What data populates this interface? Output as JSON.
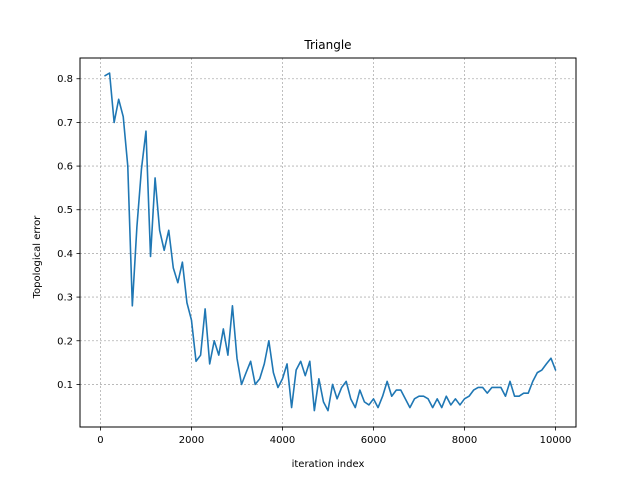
{
  "chart_data": {
    "type": "line",
    "title": "Triangle",
    "xlabel": "iteration index",
    "ylabel": "Topological error",
    "xlim": [
      -450,
      10450
    ],
    "ylim": [
      0.0025,
      0.8475
    ],
    "xticks": [
      0,
      2000,
      4000,
      6000,
      8000,
      10000
    ],
    "yticks": [
      0.1,
      0.2,
      0.3,
      0.4,
      0.5,
      0.6,
      0.7,
      0.8
    ],
    "grid": true,
    "legend": false,
    "line_color": "#1f77b4",
    "series": [
      {
        "x": [
          100,
          200,
          300,
          400,
          500,
          600,
          700,
          800,
          900,
          1000,
          1100,
          1200,
          1300,
          1400,
          1500,
          1600,
          1700,
          1800,
          1900,
          2000,
          2100,
          2200,
          2300,
          2400,
          2500,
          2600,
          2700,
          2800,
          2900,
          3000,
          3100,
          3200,
          3300,
          3400,
          3500,
          3600,
          3700,
          3800,
          3900,
          4000,
          4100,
          4200,
          4300,
          4400,
          4500,
          4600,
          4700,
          4800,
          4900,
          5000,
          5100,
          5200,
          5300,
          5400,
          5500,
          5600,
          5700,
          5800,
          5900,
          6000,
          6100,
          6200,
          6300,
          6400,
          6500,
          6600,
          6700,
          6800,
          6900,
          7000,
          7100,
          7200,
          7300,
          7400,
          7500,
          7600,
          7700,
          7800,
          7900,
          8000,
          8100,
          8200,
          8300,
          8400,
          8500,
          8600,
          8700,
          8800,
          8900,
          9000,
          9100,
          9200,
          9300,
          9400,
          9500,
          9600,
          9700,
          9800,
          9900,
          10000
        ],
        "y": [
          0.807,
          0.813,
          0.7,
          0.753,
          0.713,
          0.6,
          0.28,
          0.46,
          0.593,
          0.68,
          0.393,
          0.573,
          0.453,
          0.407,
          0.453,
          0.367,
          0.333,
          0.38,
          0.287,
          0.247,
          0.153,
          0.167,
          0.273,
          0.147,
          0.2,
          0.167,
          0.227,
          0.167,
          0.28,
          0.16,
          0.1,
          0.127,
          0.153,
          0.1,
          0.113,
          0.147,
          0.2,
          0.127,
          0.093,
          0.113,
          0.147,
          0.047,
          0.133,
          0.153,
          0.12,
          0.153,
          0.04,
          0.113,
          0.06,
          0.04,
          0.1,
          0.067,
          0.093,
          0.107,
          0.067,
          0.047,
          0.087,
          0.06,
          0.053,
          0.067,
          0.047,
          0.073,
          0.107,
          0.073,
          0.087,
          0.087,
          0.067,
          0.047,
          0.067,
          0.073,
          0.073,
          0.067,
          0.047,
          0.067,
          0.047,
          0.073,
          0.053,
          0.067,
          0.053,
          0.067,
          0.073,
          0.087,
          0.093,
          0.093,
          0.08,
          0.093,
          0.093,
          0.093,
          0.073,
          0.107,
          0.073,
          0.073,
          0.08,
          0.08,
          0.107,
          0.127,
          0.133,
          0.147,
          0.16,
          0.133
        ]
      }
    ]
  }
}
